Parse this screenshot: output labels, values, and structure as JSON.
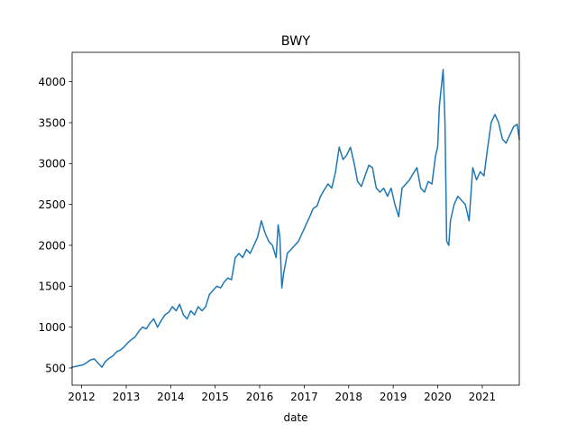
{
  "chart_data": {
    "type": "line",
    "title": "BWY",
    "xlabel": "date",
    "ylabel": "",
    "xlim": [
      "2011-10-15",
      "2021-11-01"
    ],
    "ylim": [
      290,
      4360
    ],
    "x_ticks": [
      {
        "date": "2012-01-01",
        "label": "2012"
      },
      {
        "date": "2013-01-01",
        "label": "2013"
      },
      {
        "date": "2014-01-01",
        "label": "2014"
      },
      {
        "date": "2015-01-01",
        "label": "2015"
      },
      {
        "date": "2016-01-01",
        "label": "2016"
      },
      {
        "date": "2017-01-01",
        "label": "2017"
      },
      {
        "date": "2018-01-01",
        "label": "2018"
      },
      {
        "date": "2019-01-01",
        "label": "2019"
      },
      {
        "date": "2020-01-01",
        "label": "2020"
      },
      {
        "date": "2021-01-01",
        "label": "2021"
      }
    ],
    "y_ticks": [
      500,
      1000,
      1500,
      2000,
      2500,
      3000,
      3500,
      4000
    ],
    "grid": false,
    "legend": "none",
    "color": "#1f77b4",
    "series": [
      {
        "x": [
          "2011-10-15",
          "2011-11-15",
          "2011-12-15",
          "2012-01-15",
          "2012-02-15",
          "2012-03-15",
          "2012-04-15",
          "2012-05-15",
          "2012-06-15",
          "2012-07-15",
          "2012-08-15",
          "2012-09-15",
          "2012-10-15",
          "2012-11-15",
          "2012-12-15",
          "2013-01-15",
          "2013-02-15",
          "2013-03-15",
          "2013-04-15",
          "2013-05-15",
          "2013-06-15",
          "2013-07-15",
          "2013-08-15",
          "2013-09-15",
          "2013-10-15",
          "2013-11-15",
          "2013-12-15",
          "2014-01-15",
          "2014-02-15",
          "2014-03-15",
          "2014-04-15",
          "2014-05-15",
          "2014-06-15",
          "2014-07-15",
          "2014-08-15",
          "2014-09-15",
          "2014-10-15",
          "2014-11-15",
          "2014-12-15",
          "2015-01-15",
          "2015-02-15",
          "2015-03-15",
          "2015-04-15",
          "2015-05-15",
          "2015-06-15",
          "2015-07-15",
          "2015-08-15",
          "2015-09-15",
          "2015-10-15",
          "2015-11-15",
          "2015-12-15",
          "2016-01-15",
          "2016-02-15",
          "2016-03-15",
          "2016-04-15",
          "2016-05-15",
          "2016-06-01",
          "2016-06-15",
          "2016-07-01",
          "2016-07-15",
          "2016-08-15",
          "2016-09-15",
          "2016-10-15",
          "2016-11-15",
          "2016-12-15",
          "2017-01-15",
          "2017-02-15",
          "2017-03-15",
          "2017-04-15",
          "2017-05-15",
          "2017-06-15",
          "2017-07-15",
          "2017-08-15",
          "2017-09-15",
          "2017-10-15",
          "2017-11-15",
          "2017-12-15",
          "2018-01-15",
          "2018-02-15",
          "2018-03-15",
          "2018-04-15",
          "2018-05-15",
          "2018-06-15",
          "2018-07-15",
          "2018-08-15",
          "2018-09-15",
          "2018-10-15",
          "2018-11-15",
          "2018-12-15",
          "2019-01-15",
          "2019-02-15",
          "2019-03-15",
          "2019-04-15",
          "2019-05-15",
          "2019-06-15",
          "2019-07-15",
          "2019-08-15",
          "2019-09-15",
          "2019-10-15",
          "2019-11-15",
          "2019-12-15",
          "2020-01-01",
          "2020-01-15",
          "2020-02-01",
          "2020-02-15",
          "2020-03-01",
          "2020-03-15",
          "2020-04-01",
          "2020-04-15",
          "2020-05-15",
          "2020-06-15",
          "2020-07-15",
          "2020-08-15",
          "2020-09-15",
          "2020-10-15",
          "2020-11-15",
          "2020-12-15",
          "2021-01-15",
          "2021-02-15",
          "2021-03-15",
          "2021-04-15",
          "2021-05-15",
          "2021-06-15",
          "2021-07-15",
          "2021-08-15",
          "2021-09-15",
          "2021-10-15",
          "2021-11-01"
        ],
        "y": [
          510,
          520,
          530,
          540,
          570,
          600,
          610,
          560,
          510,
          580,
          620,
          650,
          700,
          720,
          760,
          810,
          850,
          880,
          950,
          1000,
          980,
          1050,
          1100,
          1000,
          1080,
          1150,
          1180,
          1250,
          1200,
          1280,
          1150,
          1100,
          1200,
          1150,
          1250,
          1200,
          1250,
          1400,
          1450,
          1500,
          1480,
          1550,
          1600,
          1580,
          1850,
          1900,
          1850,
          1950,
          1900,
          2000,
          2100,
          2300,
          2150,
          2050,
          2000,
          1850,
          2250,
          2100,
          1480,
          1650,
          1900,
          1950,
          2000,
          2050,
          2150,
          2250,
          2350,
          2450,
          2480,
          2600,
          2680,
          2750,
          2700,
          2900,
          3200,
          3050,
          3100,
          3200,
          3000,
          2780,
          2720,
          2850,
          2980,
          2950,
          2700,
          2650,
          2700,
          2600,
          2700,
          2500,
          2350,
          2700,
          2750,
          2800,
          2880,
          2950,
          2700,
          2650,
          2780,
          2750,
          3100,
          3200,
          3700,
          3950,
          4150,
          3500,
          2050,
          2000,
          2300,
          2500,
          2600,
          2550,
          2500,
          2300,
          2950,
          2800,
          2900,
          2850,
          3200,
          3500,
          3600,
          3500,
          3300,
          3250,
          3350,
          3450,
          3480,
          3300
        ]
      }
    ]
  }
}
